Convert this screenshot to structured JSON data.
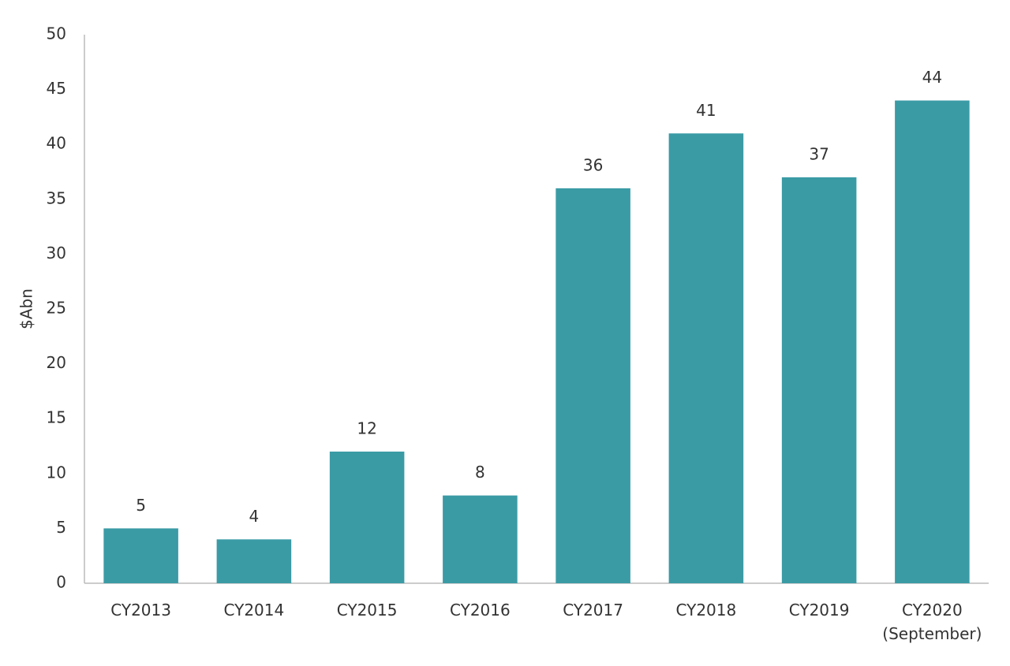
{
  "chart_data": {
    "type": "bar",
    "y_label": "$Abn",
    "categories": [
      "CY2013",
      "CY2014",
      "CY2015",
      "CY2016",
      "CY2017",
      "CY2018",
      "CY2019",
      "CY2020\n(September)"
    ],
    "values": [
      5,
      4,
      12,
      8,
      36,
      41,
      37,
      44
    ],
    "color": "#3a9ba5",
    "ylim": [
      0,
      50
    ],
    "yticks": [
      0,
      5,
      10,
      15,
      20,
      25,
      30,
      35,
      40,
      45,
      50
    ],
    "grid": false,
    "data_labels": true
  }
}
